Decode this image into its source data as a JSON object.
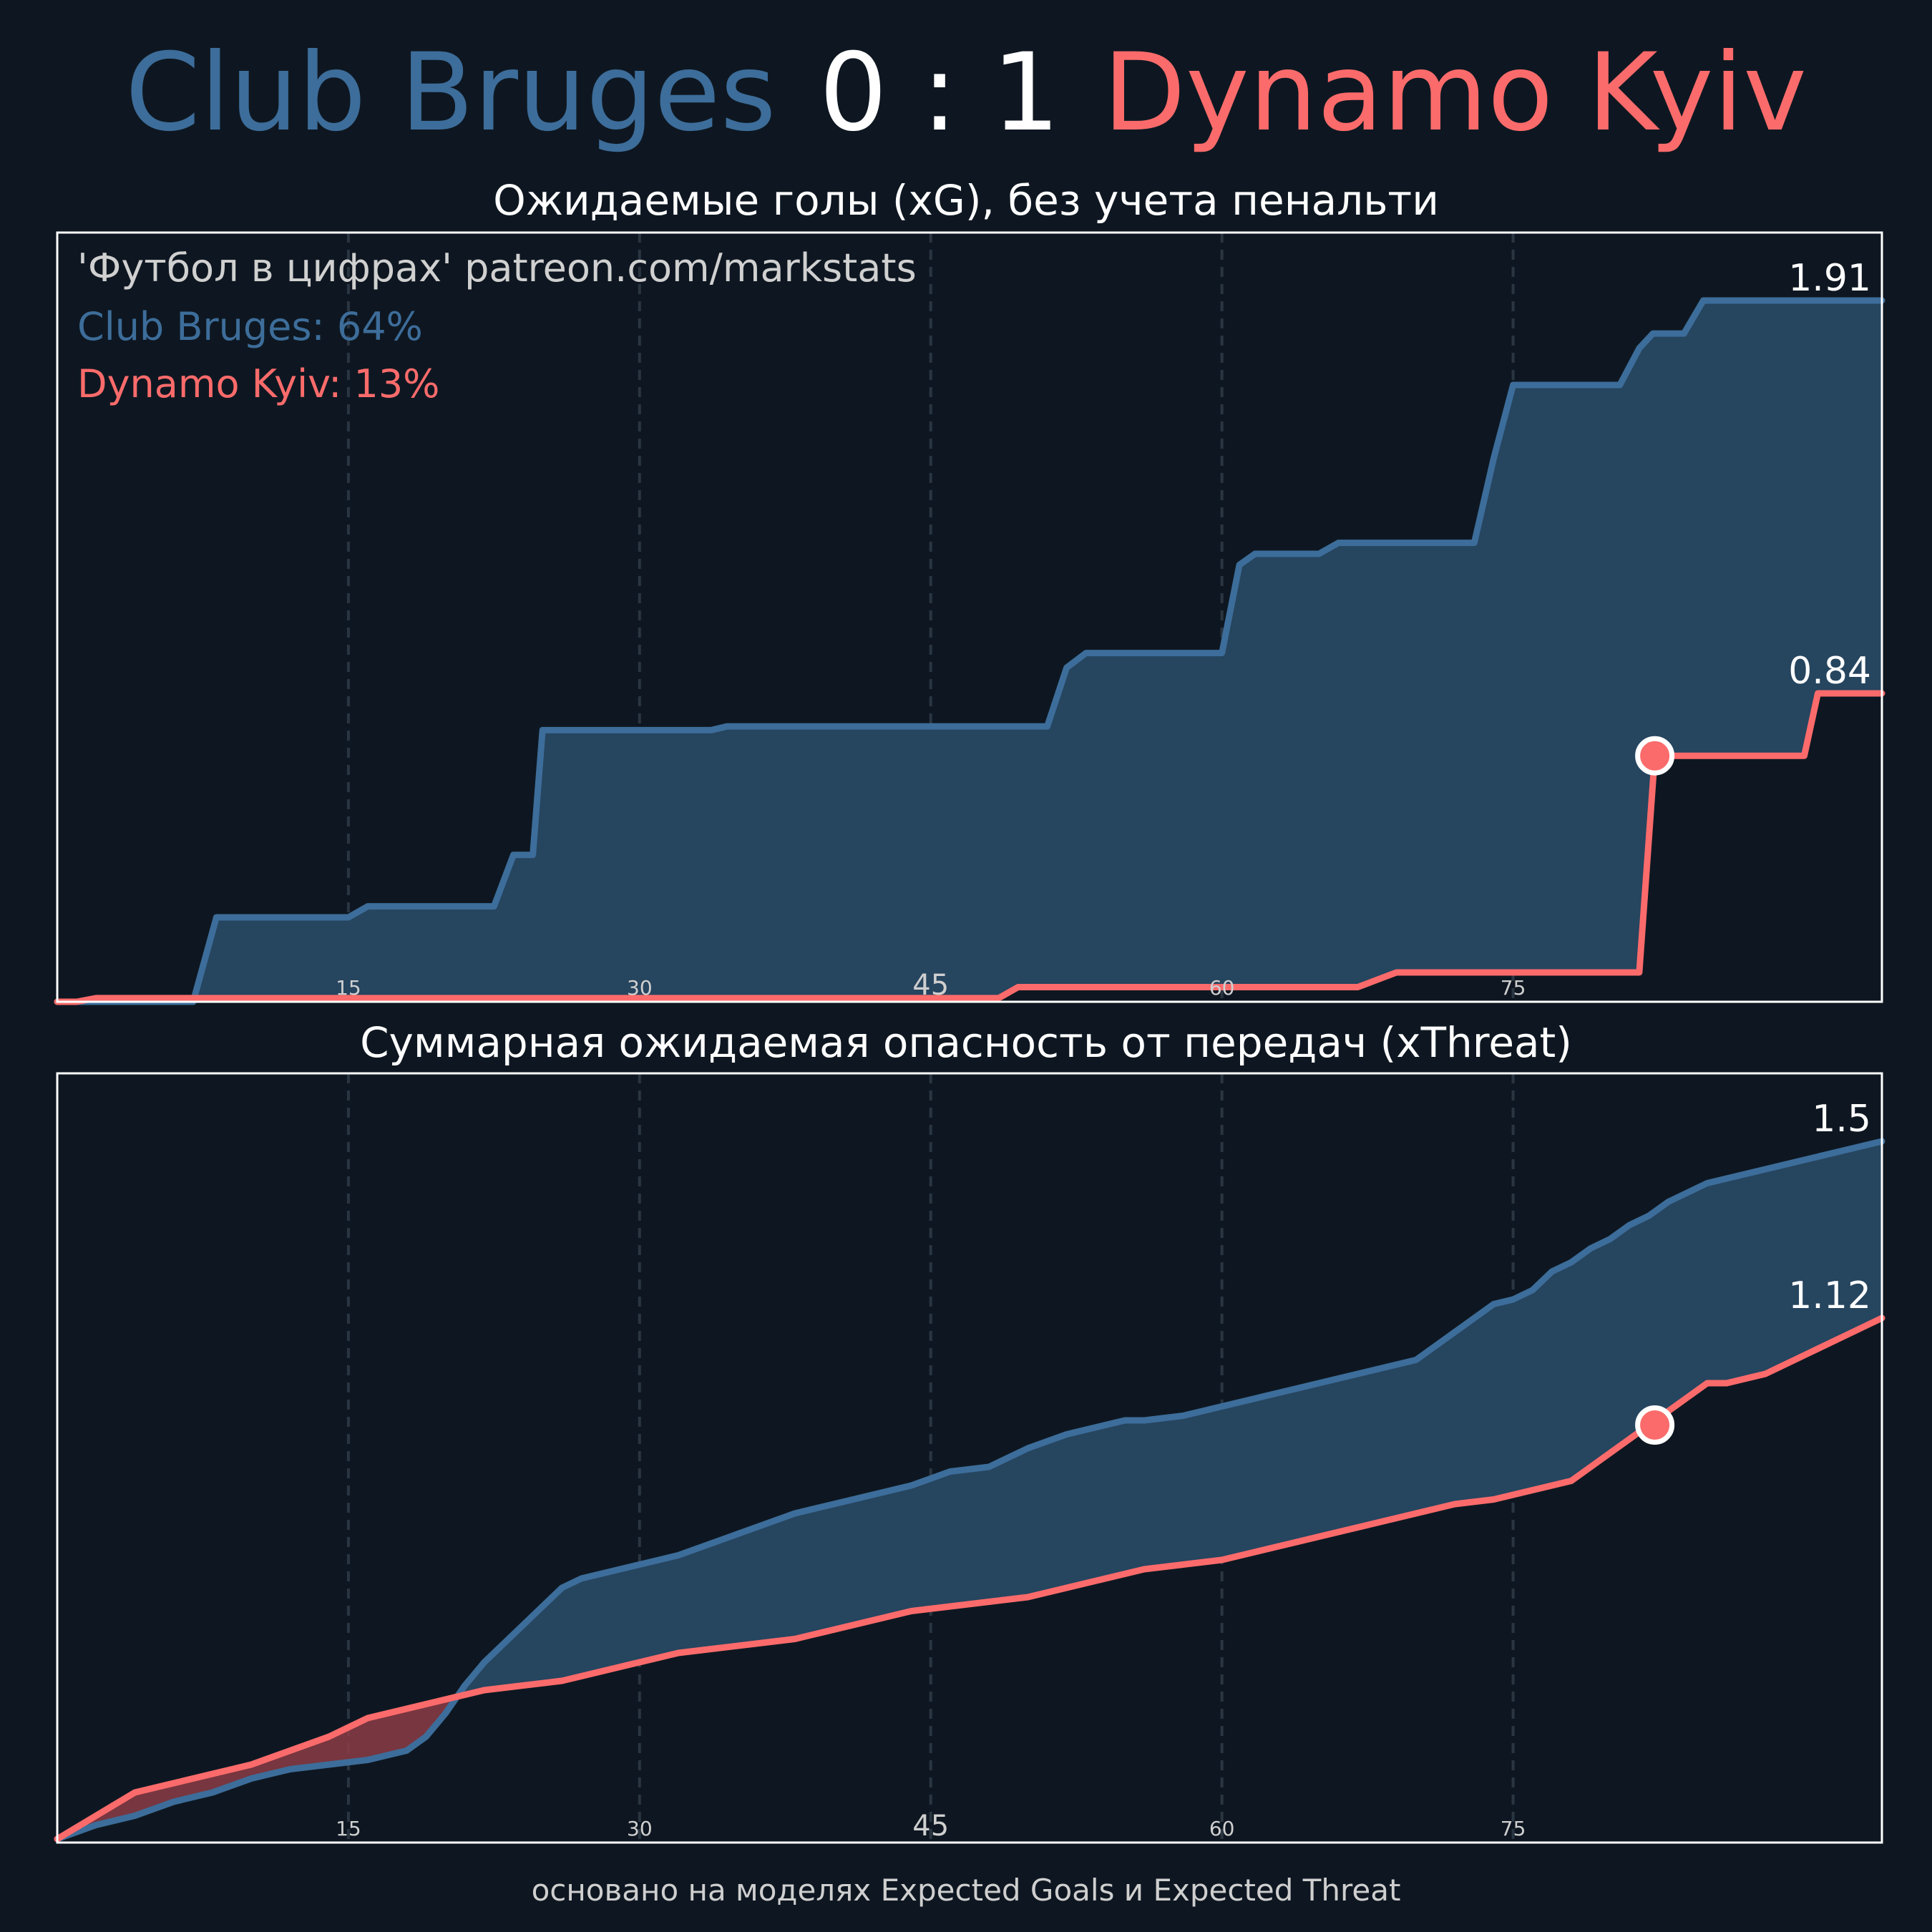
{
  "header": {
    "home_team": "Club Bruges",
    "score": "0 : 1",
    "away_team": "Dynamo Kyiv"
  },
  "credit": "'Футбол в цифрах' patreon.com/markstats",
  "legend": {
    "home": "Club Bruges: 64%",
    "away": "Dynamo Kyiv: 13%"
  },
  "footer": "основано на моделях Expected Goals и Expected Threat",
  "colors": {
    "background": "#0e1721",
    "home": "#3d6d9a",
    "home_fill": "#26455f",
    "away": "#fb6b6b",
    "away_fill": "#8b3c45",
    "grid": "#2a3542"
  },
  "chart_data": [
    {
      "type": "area",
      "title": "Ожидаемые голы (xG), без учета пенальти",
      "xlim": [
        0,
        94
      ],
      "ylim": [
        0,
        1.91
      ],
      "x_ticks": [
        15,
        30,
        45,
        60,
        75
      ],
      "x_tick_labels": [
        "15",
        "30",
        "45",
        "60",
        "75"
      ],
      "grid_x": true,
      "goal_marker": {
        "team": "Dynamo Kyiv",
        "x": 82.3,
        "y": 0.67
      },
      "series": [
        {
          "name": "Club Bruges",
          "end_label": "1.91",
          "x": [
            0,
            7,
            8.2,
            15,
            16,
            22.5,
            23.5,
            24.5,
            25,
            33.7,
            34.5,
            51,
            52,
            53,
            60,
            60.9,
            61.7,
            65,
            66,
            73,
            74,
            75,
            80.5,
            81.5,
            82.2,
            83.8,
            84.8,
            94
          ],
          "y": [
            0,
            0,
            0.23,
            0.23,
            0.26,
            0.26,
            0.4,
            0.4,
            0.74,
            0.74,
            0.75,
            0.75,
            0.91,
            0.95,
            0.95,
            1.19,
            1.22,
            1.22,
            1.25,
            1.25,
            1.48,
            1.68,
            1.68,
            1.78,
            1.82,
            1.82,
            1.91,
            1.91
          ]
        },
        {
          "name": "Dynamo Kyiv",
          "end_label": "0.84",
          "x": [
            0,
            1,
            2,
            48.5,
            49.5,
            67,
            68,
            69,
            81.5,
            82.3,
            90,
            90.7,
            94
          ],
          "y": [
            0,
            0,
            0.01,
            0.01,
            0.04,
            0.04,
            0.06,
            0.08,
            0.08,
            0.67,
            0.67,
            0.84,
            0.84
          ]
        }
      ]
    },
    {
      "type": "area",
      "title": "Суммарная ожидаемая опасность от передач (xThreat)",
      "xlim": [
        0,
        94
      ],
      "ylim": [
        0,
        1.5
      ],
      "x_ticks": [
        15,
        30,
        45,
        60,
        75
      ],
      "x_tick_labels": [
        "15",
        "30",
        "45",
        "60",
        "75"
      ],
      "grid_x": true,
      "goal_marker": {
        "team": "Dynamo Kyiv",
        "x": 82.3,
        "y": 0.89
      },
      "series": [
        {
          "name": "Club Bruges",
          "end_label": "1.5",
          "x": [
            0,
            2,
            4,
            6,
            8,
            10,
            12,
            14,
            16,
            18,
            19,
            20,
            21,
            22,
            23,
            24,
            25,
            26,
            27,
            28,
            30,
            32,
            34,
            36,
            38,
            40,
            42,
            44,
            46,
            48,
            50,
            52,
            54,
            55,
            56,
            58,
            60,
            62,
            64,
            66,
            68,
            70,
            72,
            74,
            75,
            76,
            77,
            78,
            79,
            80,
            81,
            82,
            83,
            84,
            85,
            86,
            88,
            90,
            92,
            94
          ],
          "y": [
            0,
            0.03,
            0.05,
            0.08,
            0.1,
            0.13,
            0.15,
            0.16,
            0.17,
            0.19,
            0.22,
            0.27,
            0.33,
            0.38,
            0.42,
            0.46,
            0.5,
            0.54,
            0.56,
            0.57,
            0.59,
            0.61,
            0.64,
            0.67,
            0.7,
            0.72,
            0.74,
            0.76,
            0.79,
            0.8,
            0.84,
            0.87,
            0.89,
            0.9,
            0.9,
            0.91,
            0.93,
            0.95,
            0.97,
            0.99,
            1.01,
            1.03,
            1.09,
            1.15,
            1.16,
            1.18,
            1.22,
            1.24,
            1.27,
            1.29,
            1.32,
            1.34,
            1.37,
            1.39,
            1.41,
            1.42,
            1.44,
            1.46,
            1.48,
            1.5
          ]
        },
        {
          "name": "Dynamo Kyiv",
          "end_label": "1.12",
          "x": [
            0,
            2,
            4,
            6,
            8,
            10,
            12,
            14,
            16,
            18,
            20,
            22,
            24,
            26,
            28,
            30,
            32,
            34,
            36,
            38,
            40,
            42,
            44,
            46,
            48,
            50,
            52,
            54,
            56,
            58,
            60,
            62,
            64,
            66,
            68,
            70,
            72,
            74,
            76,
            78,
            80,
            82,
            84,
            85,
            86,
            88,
            90,
            92,
            94
          ],
          "y": [
            0,
            0.05,
            0.1,
            0.12,
            0.14,
            0.16,
            0.19,
            0.22,
            0.26,
            0.28,
            0.3,
            0.32,
            0.33,
            0.34,
            0.36,
            0.38,
            0.4,
            0.41,
            0.42,
            0.43,
            0.45,
            0.47,
            0.49,
            0.5,
            0.51,
            0.52,
            0.54,
            0.56,
            0.58,
            0.59,
            0.6,
            0.62,
            0.64,
            0.66,
            0.68,
            0.7,
            0.72,
            0.73,
            0.75,
            0.77,
            0.83,
            0.89,
            0.95,
            0.98,
            0.98,
            1.0,
            1.04,
            1.08,
            1.12
          ]
        }
      ]
    }
  ]
}
